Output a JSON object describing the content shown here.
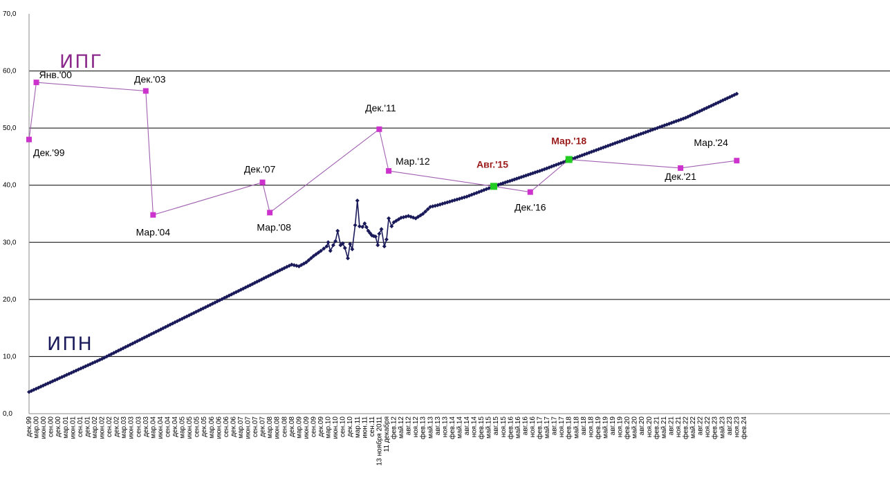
{
  "chart_data": {
    "type": "line",
    "ylim": [
      0,
      70
    ],
    "yticks": [
      "0,0",
      "10,0",
      "20,0",
      "30,0",
      "40,0",
      "50,0",
      "60,0",
      "70,0"
    ],
    "xticks": [
      "дек.99",
      "мар.00",
      "июн.00",
      "сен.00",
      "дек.00",
      "мар.01",
      "июн.01",
      "сен.01",
      "дек.01",
      "мар.02",
      "июн.02",
      "сен.02",
      "дек.02",
      "мар.03",
      "июн.03",
      "сен.03",
      "дек.03",
      "мар.04",
      "июн.04",
      "сен.04",
      "дек.04",
      "мар.05",
      "июн.05",
      "сен.05",
      "дек.05",
      "мар.06",
      "июн.06",
      "сен.06",
      "дек.06",
      "мар.07",
      "июн.07",
      "сен.07",
      "дек.07",
      "мар.08",
      "июн.08",
      "сен.08",
      "дек.08",
      "мар.09",
      "июн.09",
      "сен.09",
      "дек.09",
      "мар.10",
      "июн.10",
      "сен.10",
      "дек.10",
      "мар.11",
      "июн.11",
      "сен.11",
      "13 ноября 2011",
      "11 декабря",
      "фев.12",
      "май.12",
      "авг.12",
      "ноя.12",
      "фев.13",
      "май.13",
      "авг.13",
      "ноя.13",
      "фев.14",
      "май.14",
      "авг.14",
      "ноя.14",
      "фев.15",
      "май.15",
      "авг.15",
      "ноя.15",
      "фев.16",
      "май.16",
      "авг.16",
      "ноя.16",
      "фев.17",
      "май.17",
      "авг.17",
      "ноя.17",
      "фев.18",
      "май.18",
      "авг.18",
      "ноя.18",
      "фев.19",
      "май.19",
      "авг.19",
      "ноя.19",
      "фев.20",
      "май.20",
      "авг.20",
      "ноя.20",
      "фев.21",
      "май.21",
      "авг.21",
      "ноя.21",
      "фев.22",
      "май.22",
      "авг.22",
      "ноя.22",
      "фев.23",
      "май.23",
      "авг.23",
      "ноя.23",
      "фев.24"
    ],
    "grid": true,
    "series": [
      {
        "name": "ИПГ",
        "color": "#cc33cc",
        "line_color": "#a060b0",
        "points": [
          {
            "x": 0.0,
            "y": 48.0
          },
          {
            "x": 1.0,
            "y": 58.0
          },
          {
            "x": 16.0,
            "y": 56.5
          },
          {
            "x": 17.0,
            "y": 34.8
          },
          {
            "x": 32.0,
            "y": 40.5
          },
          {
            "x": 33.0,
            "y": 35.2
          },
          {
            "x": 48.0,
            "y": 49.8
          },
          {
            "x": 49.3,
            "y": 42.5
          },
          {
            "x": 63.7,
            "y": 39.8
          },
          {
            "x": 68.7,
            "y": 38.8
          },
          {
            "x": 74.0,
            "y": 44.5
          },
          {
            "x": 89.3,
            "y": 43.0
          },
          {
            "x": 97.0,
            "y": 44.3
          }
        ],
        "highlighted": [
          {
            "x": 63.7,
            "y": 39.8
          },
          {
            "x": 74.0,
            "y": 44.5
          }
        ],
        "highlight_color": "#22cc22"
      },
      {
        "name": "ИПН",
        "color": "#1a1a5a",
        "points": [
          {
            "x": 0.0,
            "y": 3.8
          },
          {
            "x": 10.0,
            "y": 9.6
          },
          {
            "x": 20.0,
            "y": 16.0
          },
          {
            "x": 30.0,
            "y": 22.3
          },
          {
            "x": 35.0,
            "y": 25.5
          },
          {
            "x": 36.0,
            "y": 26.1
          },
          {
            "x": 37.0,
            "y": 25.8
          },
          {
            "x": 38.0,
            "y": 26.5
          },
          {
            "x": 39.0,
            "y": 27.6
          },
          {
            "x": 40.0,
            "y": 28.5
          },
          {
            "x": 40.8,
            "y": 29.3
          },
          {
            "x": 41.0,
            "y": 30.0
          },
          {
            "x": 41.3,
            "y": 28.5
          },
          {
            "x": 41.7,
            "y": 29.5
          },
          {
            "x": 42.0,
            "y": 30.2
          },
          {
            "x": 42.3,
            "y": 32.0
          },
          {
            "x": 42.7,
            "y": 29.5
          },
          {
            "x": 43.0,
            "y": 29.8
          },
          {
            "x": 43.3,
            "y": 29.0
          },
          {
            "x": 43.7,
            "y": 27.2
          },
          {
            "x": 44.0,
            "y": 29.7
          },
          {
            "x": 44.3,
            "y": 28.8
          },
          {
            "x": 44.7,
            "y": 33.0
          },
          {
            "x": 45.0,
            "y": 37.3
          },
          {
            "x": 45.3,
            "y": 32.8
          },
          {
            "x": 45.7,
            "y": 32.7
          },
          {
            "x": 46.0,
            "y": 33.3
          },
          {
            "x": 46.5,
            "y": 32.0
          },
          {
            "x": 47.0,
            "y": 31.2
          },
          {
            "x": 47.5,
            "y": 31.0
          },
          {
            "x": 47.8,
            "y": 29.5
          },
          {
            "x": 48.0,
            "y": 31.5
          },
          {
            "x": 48.3,
            "y": 32.3
          },
          {
            "x": 48.7,
            "y": 29.3
          },
          {
            "x": 49.0,
            "y": 30.5
          },
          {
            "x": 49.3,
            "y": 34.2
          },
          {
            "x": 49.7,
            "y": 32.8
          },
          {
            "x": 50.0,
            "y": 33.5
          },
          {
            "x": 51.0,
            "y": 34.3
          },
          {
            "x": 52.0,
            "y": 34.6
          },
          {
            "x": 53.0,
            "y": 34.2
          },
          {
            "x": 54.0,
            "y": 35.0
          },
          {
            "x": 55.0,
            "y": 36.2
          },
          {
            "x": 56.0,
            "y": 36.5
          },
          {
            "x": 60.0,
            "y": 38.0
          },
          {
            "x": 63.7,
            "y": 39.8
          },
          {
            "x": 70.0,
            "y": 42.5
          },
          {
            "x": 80.0,
            "y": 47.2
          },
          {
            "x": 90.0,
            "y": 51.8
          },
          {
            "x": 97.0,
            "y": 56.0
          }
        ]
      }
    ],
    "annotations": [
      {
        "text": "Янв.'00",
        "x": 1.0,
        "y": 58.0,
        "highlight": false
      },
      {
        "text": "Дек.'99",
        "x": 0.0,
        "y": 48.0,
        "highlight": false
      },
      {
        "text": "Дек.'03",
        "x": 16.0,
        "y": 56.5,
        "highlight": false
      },
      {
        "text": "Мар.'04",
        "x": 17.0,
        "y": 34.8,
        "highlight": false
      },
      {
        "text": "Дек.'07",
        "x": 32.0,
        "y": 40.5,
        "highlight": false
      },
      {
        "text": "Мар.'08",
        "x": 33.0,
        "y": 35.2,
        "highlight": false
      },
      {
        "text": "Дек.'11",
        "x": 48.0,
        "y": 49.8,
        "highlight": false
      },
      {
        "text": "Мар.'12",
        "x": 49.3,
        "y": 42.5,
        "highlight": false
      },
      {
        "text": "Авг.'15",
        "x": 63.7,
        "y": 39.8,
        "highlight": true
      },
      {
        "text": "Дек.'16",
        "x": 68.7,
        "y": 38.8,
        "highlight": false
      },
      {
        "text": "Мар.'18",
        "x": 74.0,
        "y": 44.5,
        "highlight": true
      },
      {
        "text": "Дек.'21",
        "x": 89.3,
        "y": 43.0,
        "highlight": false
      },
      {
        "text": "Мар.'24",
        "x": 97.0,
        "y": 44.3,
        "highlight": false
      }
    ]
  }
}
